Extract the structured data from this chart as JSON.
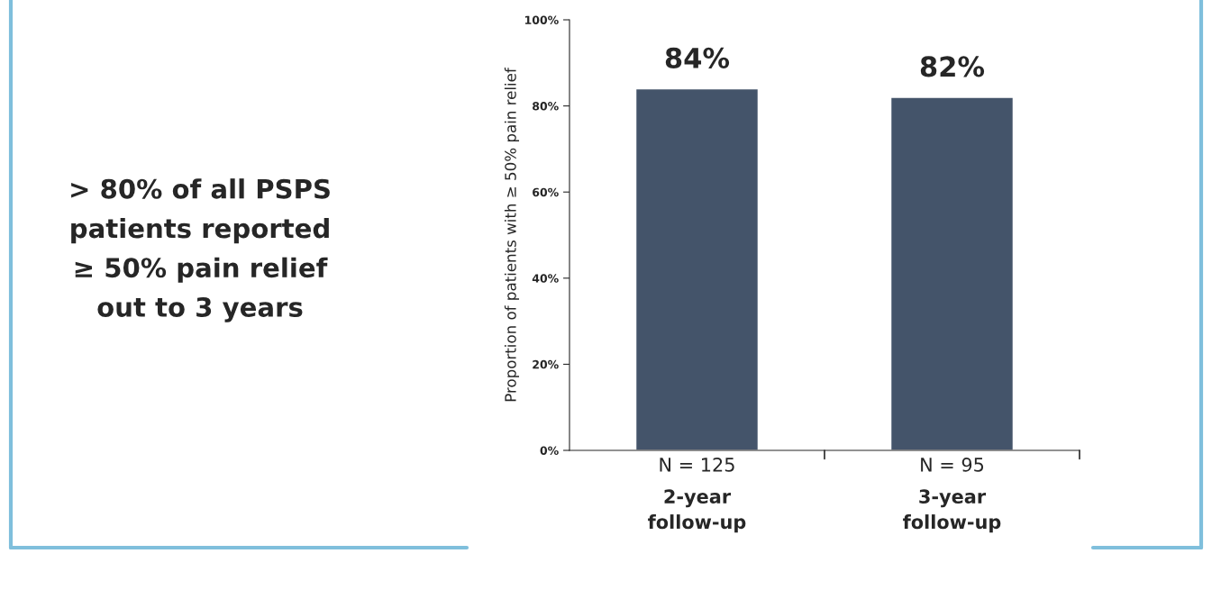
{
  "chart_data": {
    "type": "bar",
    "ylabel": "Proportion of patients with ≥ 50% pain relief",
    "categories": [
      "N = 125\n2-year\nfollow-up",
      "N = 95\n3-year\nfollow-up"
    ],
    "values": [
      84,
      82
    ],
    "color": "#44546a",
    "value_labels": [
      "84%",
      "82%"
    ],
    "ylim": [
      0,
      100
    ],
    "yticks": [
      {
        "value": 0,
        "label": "0%"
      },
      {
        "value": 20,
        "label": "20%"
      },
      {
        "value": 40,
        "label": "40%"
      },
      {
        "value": 60,
        "label": "60%"
      },
      {
        "value": 80,
        "label": "80%"
      },
      {
        "value": 100,
        "label": "100%"
      }
    ],
    "grid": false,
    "annotations": [
      "> 80% of all PSPS\npatients reported\n≥ 50% pain relief\nout to 3 years"
    ]
  }
}
